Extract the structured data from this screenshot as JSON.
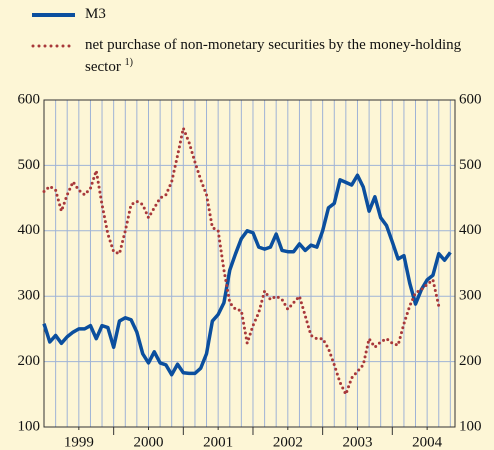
{
  "chart_data": {
    "type": "line",
    "x": [
      1999,
      1999.083,
      1999.167,
      1999.25,
      1999.333,
      1999.417,
      1999.5,
      1999.583,
      1999.667,
      1999.75,
      1999.833,
      1999.917,
      2000,
      2000.083,
      2000.167,
      2000.25,
      2000.333,
      2000.417,
      2000.5,
      2000.583,
      2000.667,
      2000.75,
      2000.833,
      2000.917,
      2001,
      2001.083,
      2001.167,
      2001.25,
      2001.333,
      2001.417,
      2001.5,
      2001.583,
      2001.667,
      2001.75,
      2001.833,
      2001.917,
      2002,
      2002.083,
      2002.167,
      2002.25,
      2002.333,
      2002.417,
      2002.5,
      2002.583,
      2002.667,
      2002.75,
      2002.833,
      2002.917,
      2003,
      2003.083,
      2003.167,
      2003.25,
      2003.333,
      2003.417,
      2003.5,
      2003.583,
      2003.667,
      2003.75,
      2003.833,
      2003.917,
      2004,
      2004.083,
      2004.167,
      2004.25,
      2004.333,
      2004.417,
      2004.5,
      2004.583,
      2004.667,
      2004.75,
      2004.833
    ],
    "series": [
      {
        "name": "M3",
        "color": "#0b4f9e",
        "style": "solid",
        "values": [
          258,
          230,
          240,
          228,
          238,
          245,
          250,
          250,
          255,
          235,
          255,
          252,
          222,
          262,
          267,
          264,
          245,
          212,
          198,
          215,
          198,
          195,
          180,
          196,
          183,
          182,
          182,
          190,
          212,
          262,
          272,
          290,
          340,
          365,
          388,
          400,
          397,
          375,
          372,
          375,
          395,
          370,
          368,
          368,
          380,
          370,
          378,
          375,
          400,
          435,
          442,
          478,
          474,
          470,
          485,
          467,
          430,
          452,
          420,
          408,
          383,
          357,
          362,
          320,
          288,
          310,
          325,
          332,
          365,
          355,
          367
        ]
      },
      {
        "name": "net purchase of non-monetary securities by the money-holding sector",
        "footnote": "1)",
        "color": "#a8383a",
        "style": "dotted",
        "values": [
          460,
          468,
          462,
          430,
          455,
          475,
          462,
          455,
          465,
          492,
          440,
          395,
          368,
          365,
          400,
          440,
          445,
          440,
          420,
          435,
          450,
          455,
          475,
          515,
          557,
          535,
          505,
          478,
          455,
          405,
          400,
          340,
          290,
          280,
          278,
          228,
          255,
          275,
          308,
          295,
          300,
          295,
          280,
          290,
          300,
          270,
          240,
          235,
          235,
          220,
          195,
          168,
          150,
          175,
          185,
          195,
          235,
          222,
          230,
          235,
          228,
          225,
          258,
          285,
          305,
          310,
          318,
          325,
          285,
          null,
          null
        ]
      }
    ],
    "xlim": [
      1999,
      2004.9
    ],
    "xticks": [
      {
        "value": 1999.5,
        "label": "1999"
      },
      {
        "value": 2000.5,
        "label": "2000"
      },
      {
        "value": 2001.5,
        "label": "2001"
      },
      {
        "value": 2002.5,
        "label": "2002"
      },
      {
        "value": 2003.5,
        "label": "2003"
      },
      {
        "value": 2004.5,
        "label": "2004"
      }
    ],
    "xgrid": [
      1999.167,
      1999.333,
      1999.5,
      1999.667,
      1999.833,
      2000,
      2000.167,
      2000.333,
      2000.5,
      2000.667,
      2000.833,
      2001,
      2001.167,
      2001.333,
      2001.5,
      2001.667,
      2001.833,
      2002,
      2002.167,
      2002.333,
      2002.5,
      2002.667,
      2002.833,
      2003,
      2003.167,
      2003.333,
      2003.5,
      2003.667,
      2003.833,
      2004,
      2004.167,
      2004.333,
      2004.5,
      2004.667,
      2004.833
    ],
    "ylim": [
      100,
      600
    ],
    "yticks": [
      100,
      200,
      300,
      400,
      500,
      600
    ],
    "y2lim": [
      100,
      600
    ],
    "y2ticks": [
      100,
      200,
      300,
      400,
      500,
      600
    ],
    "grid": true
  }
}
